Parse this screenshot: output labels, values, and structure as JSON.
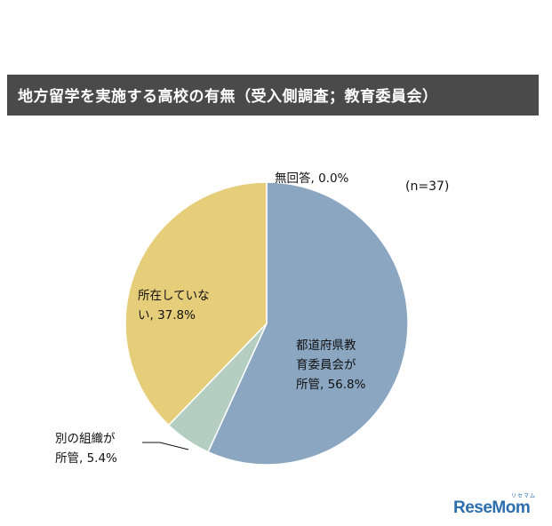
{
  "title": "地方留学を実施する高校の有無（受入側調査；教育委員会）",
  "n_label": "(n=37)",
  "logo": {
    "text": "ReseMom",
    "sub": "リセマム"
  },
  "chart_data": {
    "type": "pie",
    "title": "地方留学を実施する高校の有無（受入側調査；教育委員会）",
    "slices": [
      {
        "label_lines": [
          "無回答, 0.0%"
        ],
        "value": 0.0,
        "color": "#e8e8e8"
      },
      {
        "label_lines": [
          "都道府県教",
          "育委員会が",
          "所管, 56.8%"
        ],
        "value": 56.8,
        "color": "#8aa6c1"
      },
      {
        "label_lines": [
          "別の組織が",
          "所管, 5.4%"
        ],
        "value": 5.4,
        "color": "#b4cfc2"
      },
      {
        "label_lines": [
          "所在していな",
          "い, 37.8%"
        ],
        "value": 37.8,
        "color": "#e6cd7a"
      }
    ],
    "legend": "none"
  }
}
